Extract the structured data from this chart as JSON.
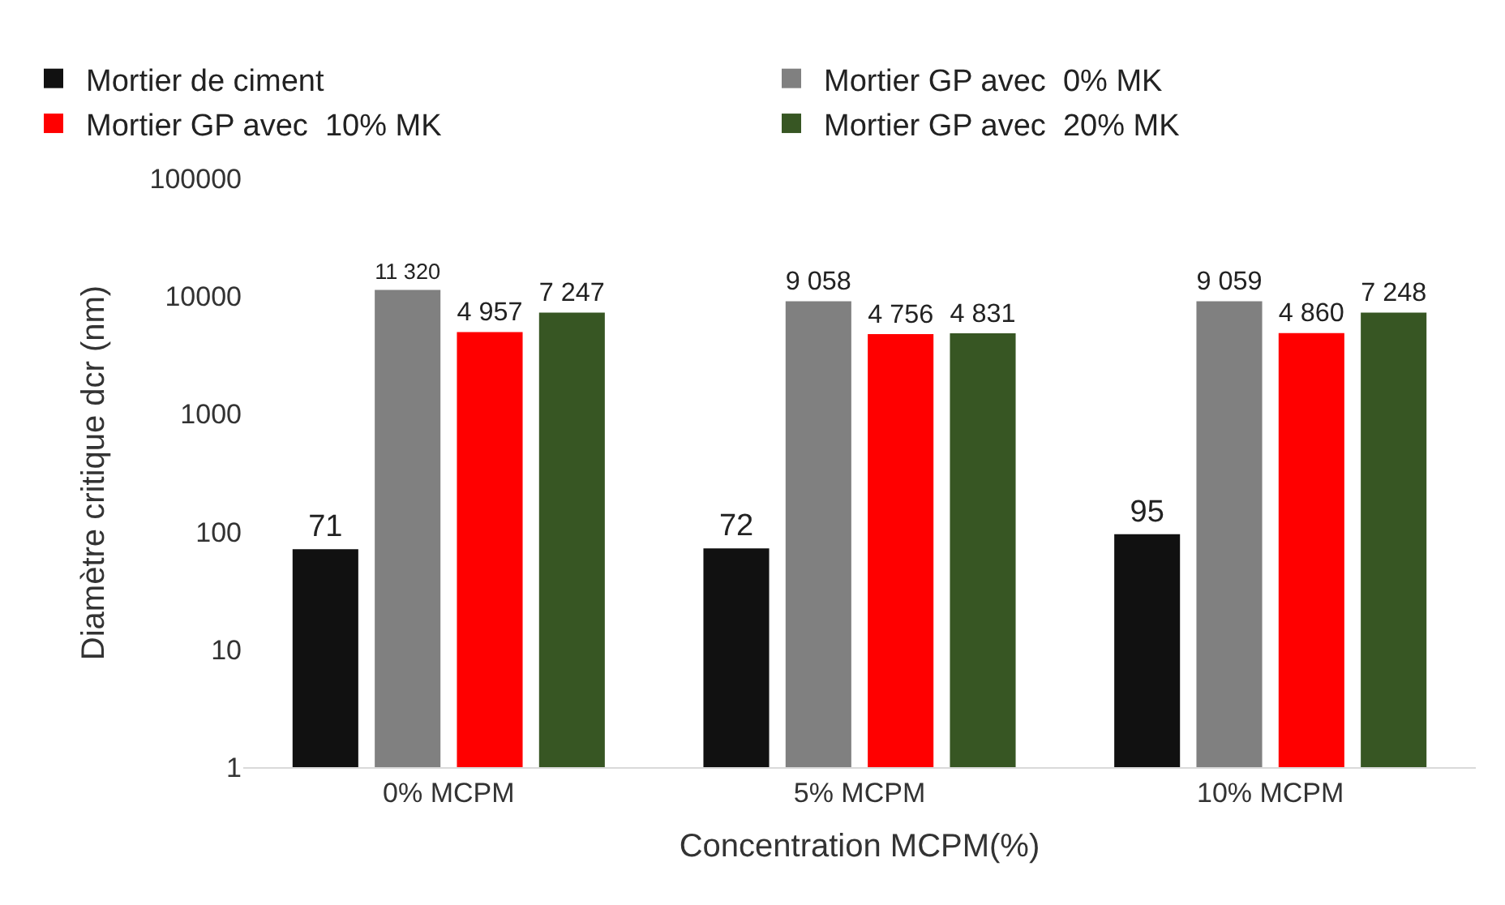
{
  "chart_data": {
    "type": "bar",
    "xlabel": "Concentration MCPM(%)",
    "ylabel": "Diamètre critique dcr (nm)",
    "categories": [
      "0% MCPM",
      "5% MCPM",
      "10% MCPM"
    ],
    "series": [
      {
        "name": "Mortier de ciment",
        "color": "#111111",
        "values": [
          71,
          72,
          95
        ],
        "value_labels": [
          "71",
          "72",
          "95"
        ]
      },
      {
        "name": "Mortier GP avec  0% MK",
        "color": "#808080",
        "values": [
          11320,
          9058,
          9059
        ],
        "value_labels": [
          "11 320",
          "9 058",
          "9 059"
        ]
      },
      {
        "name": "Mortier GP avec  10% MK",
        "color": "#ff0000",
        "values": [
          4957,
          4756,
          4860
        ],
        "value_labels": [
          "4 957",
          "4 756",
          "4 860"
        ]
      },
      {
        "name": "Mortier GP avec  20% MK",
        "color": "#375623",
        "values": [
          7247,
          4831,
          7248
        ],
        "value_labels": [
          "7 247",
          "4 831",
          "7 248"
        ]
      }
    ],
    "log": "y",
    "ylim": [
      1,
      100000
    ],
    "yticks": [
      1,
      10,
      100,
      1000,
      10000,
      100000
    ],
    "grid": false,
    "legend": "top"
  }
}
